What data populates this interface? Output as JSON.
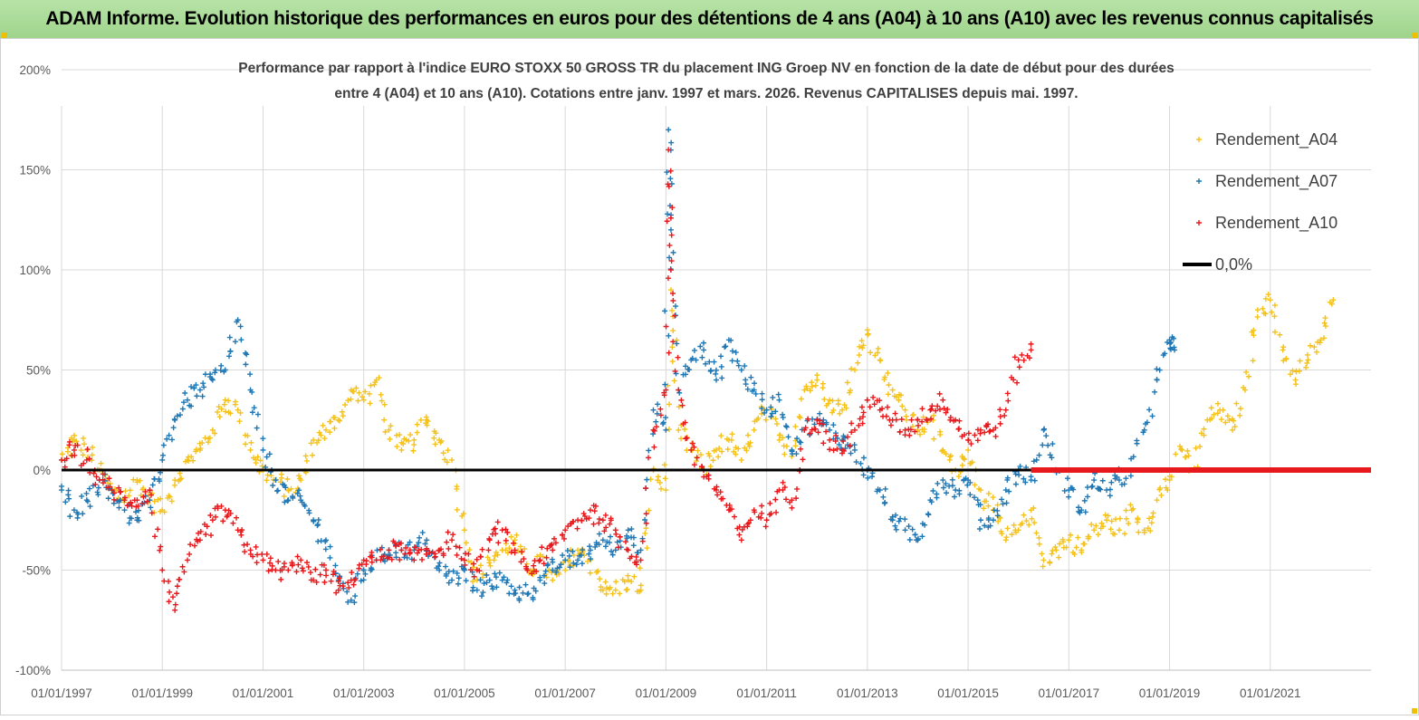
{
  "page": {
    "banner_title": "ADAM Informe. Evolution historique des performances en euros pour des détentions de 4 ans (A04) à 10 ans (A10) avec les revenus connus capitalisés"
  },
  "chart_data": {
    "type": "scatter",
    "title_line1": "Performance par rapport à l'indice EURO STOXX 50 GROSS TR  du placement ING Groep NV en fonction de la date de début pour des durées",
    "title_line2": "entre 4 (A04) et 10 ans (A10). Cotations entre janv. 1997 et mars. 2026. Revenus CAPITALISES depuis mai. 1997.",
    "xlabel": "",
    "ylabel": "",
    "xlim": [
      1997.0,
      2023.0
    ],
    "ylim": [
      -100,
      200
    ],
    "y_ticks": [
      200,
      150,
      100,
      50,
      0,
      -50,
      -100
    ],
    "y_tick_labels": [
      "200%",
      "150%",
      "100%",
      "50%",
      "0%",
      "-50%",
      "-100%"
    ],
    "x_ticks": [
      1997,
      1999,
      2001,
      2003,
      2005,
      2007,
      2009,
      2011,
      2013,
      2015,
      2017,
      2019,
      2021
    ],
    "x_tick_labels": [
      "01/01/1997",
      "01/01/1999",
      "01/01/2001",
      "01/01/2003",
      "01/01/2005",
      "01/01/2007",
      "01/01/2009",
      "01/01/2011",
      "01/01/2013",
      "01/01/2015",
      "01/01/2017",
      "01/01/2019",
      "01/01/2021"
    ],
    "grid": true,
    "legend_position": "top-right",
    "zero_line": {
      "name": "0,0%",
      "value": 0,
      "color": "#000000"
    },
    "series": [
      {
        "name": "Rendement_A04",
        "color": "#f5c21b",
        "x": [
          1997.0,
          1997.25,
          1997.5,
          1997.75,
          1998.0,
          1998.25,
          1998.5,
          1998.75,
          1999.0,
          1999.25,
          1999.5,
          1999.75,
          2000.0,
          2000.25,
          2000.5,
          2000.75,
          2001.0,
          2001.25,
          2001.5,
          2001.75,
          2002.0,
          2002.25,
          2002.5,
          2002.75,
          2003.0,
          2003.25,
          2003.5,
          2003.75,
          2004.0,
          2004.25,
          2004.5,
          2004.75,
          2005.0,
          2005.25,
          2005.5,
          2005.75,
          2006.0,
          2006.25,
          2006.5,
          2006.75,
          2007.0,
          2007.25,
          2007.5,
          2007.75,
          2008.0,
          2008.25,
          2008.5,
          2008.75,
          2009.0,
          2009.1,
          2009.25,
          2009.5,
          2009.75,
          2010.0,
          2010.25,
          2010.5,
          2010.75,
          2011.0,
          2011.25,
          2011.5,
          2011.75,
          2012.0,
          2012.25,
          2012.5,
          2012.75,
          2013.0,
          2013.25,
          2013.5,
          2013.75,
          2014.0,
          2014.25,
          2014.5,
          2014.75,
          2015.0,
          2015.25,
          2015.5,
          2015.75,
          2016.0,
          2016.25,
          2016.5,
          2016.75,
          2017.0,
          2017.25,
          2017.5,
          2017.75,
          2018.0,
          2018.25,
          2018.5,
          2018.75,
          2019.0,
          2019.25,
          2019.5,
          2019.75,
          2020.0,
          2020.25,
          2020.5,
          2020.75,
          2021.0,
          2021.25,
          2021.5,
          2021.75,
          2022.0,
          2022.25
        ],
        "y": [
          5,
          15,
          10,
          0,
          -10,
          -15,
          -5,
          -15,
          -20,
          -5,
          5,
          10,
          20,
          35,
          30,
          10,
          0,
          -5,
          -10,
          -5,
          15,
          20,
          25,
          40,
          35,
          45,
          20,
          10,
          15,
          25,
          15,
          5,
          -30,
          -55,
          -45,
          -40,
          -35,
          -50,
          -45,
          -55,
          -50,
          -40,
          -45,
          -60,
          -60,
          -55,
          -60,
          0,
          -10,
          90,
          20,
          10,
          0,
          10,
          15,
          5,
          20,
          30,
          15,
          10,
          40,
          45,
          35,
          30,
          50,
          70,
          55,
          40,
          30,
          20,
          25,
          10,
          0,
          10,
          -10,
          -20,
          -35,
          -30,
          -20,
          -45,
          -40,
          -35,
          -40,
          -30,
          -25,
          -30,
          -20,
          -30,
          -15,
          -5,
          10,
          0,
          25,
          30,
          20,
          40,
          80,
          85,
          60,
          45,
          55,
          65,
          85
        ]
      },
      {
        "name": "Rendement_A07",
        "color": "#1f77b4",
        "x": [
          1997.0,
          1997.25,
          1997.5,
          1997.75,
          1998.0,
          1998.25,
          1998.5,
          1998.75,
          1999.0,
          1999.25,
          1999.5,
          1999.75,
          2000.0,
          2000.25,
          2000.5,
          2000.75,
          2001.0,
          2001.25,
          2001.5,
          2001.75,
          2002.0,
          2002.25,
          2002.5,
          2002.75,
          2003.0,
          2003.25,
          2003.5,
          2003.75,
          2004.0,
          2004.25,
          2004.5,
          2004.75,
          2005.0,
          2005.25,
          2005.5,
          2005.75,
          2006.0,
          2006.25,
          2006.5,
          2006.75,
          2007.0,
          2007.25,
          2007.5,
          2007.75,
          2008.0,
          2008.25,
          2008.5,
          2008.75,
          2009.0,
          2009.05,
          2009.1,
          2009.25,
          2009.5,
          2009.75,
          2010.0,
          2010.25,
          2010.5,
          2010.75,
          2011.0,
          2011.25,
          2011.5,
          2011.75,
          2012.0,
          2012.25,
          2012.5,
          2012.75,
          2013.0,
          2013.25,
          2013.5,
          2013.75,
          2014.0,
          2014.25,
          2014.5,
          2014.75,
          2015.0,
          2015.25,
          2015.5,
          2015.75,
          2016.0,
          2016.25,
          2016.5,
          2016.75,
          2017.0,
          2017.25,
          2017.5,
          2017.75,
          2018.0,
          2018.25,
          2018.5,
          2018.75,
          2019.0,
          2019.1
        ],
        "y": [
          -10,
          -20,
          -15,
          -5,
          -10,
          -20,
          -25,
          -15,
          5,
          25,
          35,
          40,
          45,
          50,
          75,
          40,
          10,
          -5,
          -15,
          -15,
          -25,
          -35,
          -55,
          -65,
          -50,
          -45,
          -40,
          -40,
          -40,
          -35,
          -50,
          -55,
          -50,
          -60,
          -55,
          -55,
          -60,
          -62,
          -55,
          -50,
          -45,
          -45,
          -40,
          -35,
          -40,
          -30,
          -40,
          30,
          20,
          170,
          120,
          40,
          55,
          60,
          45,
          65,
          50,
          40,
          30,
          35,
          10,
          20,
          25,
          20,
          15,
          10,
          0,
          -10,
          -25,
          -30,
          -35,
          -15,
          -5,
          -10,
          -5,
          -25,
          -25,
          -10,
          0,
          -5,
          20,
          0,
          -10,
          -20,
          -5,
          -10,
          -5,
          0,
          20,
          45,
          65,
          60
        ]
      },
      {
        "name": "Rendement_A10",
        "color": "#e8191c",
        "x": [
          1997.0,
          1997.25,
          1997.5,
          1997.75,
          1998.0,
          1998.25,
          1998.5,
          1998.75,
          1999.0,
          1999.25,
          1999.5,
          1999.75,
          2000.0,
          2000.25,
          2000.5,
          2000.75,
          2001.0,
          2001.25,
          2001.5,
          2001.75,
          2002.0,
          2002.25,
          2002.5,
          2002.75,
          2003.0,
          2003.25,
          2003.5,
          2003.75,
          2004.0,
          2004.25,
          2004.5,
          2004.75,
          2005.0,
          2005.25,
          2005.5,
          2005.75,
          2006.0,
          2006.25,
          2006.5,
          2006.75,
          2007.0,
          2007.25,
          2007.5,
          2007.75,
          2008.0,
          2008.25,
          2008.5,
          2008.75,
          2009.0,
          2009.05,
          2009.1,
          2009.25,
          2009.5,
          2009.75,
          2010.0,
          2010.25,
          2010.5,
          2010.75,
          2011.0,
          2011.25,
          2011.5,
          2011.75,
          2012.0,
          2012.25,
          2012.5,
          2012.75,
          2013.0,
          2013.25,
          2013.5,
          2013.75,
          2014.0,
          2014.25,
          2014.5,
          2014.75,
          2015.0,
          2015.25,
          2015.5,
          2015.75,
          2016.0,
          2016.25
        ],
        "y": [
          5,
          10,
          5,
          -5,
          -10,
          -15,
          -15,
          -10,
          -50,
          -70,
          -45,
          -35,
          -25,
          -20,
          -30,
          -40,
          -45,
          -50,
          -50,
          -45,
          -55,
          -50,
          -60,
          -55,
          -45,
          -45,
          -40,
          -40,
          -45,
          -40,
          -40,
          -35,
          -45,
          -50,
          -35,
          -30,
          -40,
          -50,
          -45,
          -40,
          -30,
          -25,
          -20,
          -25,
          -30,
          -40,
          -45,
          20,
          40,
          160,
          100,
          40,
          10,
          0,
          -10,
          -20,
          -35,
          -20,
          -25,
          -10,
          -15,
          20,
          25,
          15,
          10,
          20,
          35,
          30,
          25,
          20,
          25,
          30,
          35,
          25,
          15,
          20,
          20,
          30,
          55,
          60
        ]
      }
    ]
  }
}
